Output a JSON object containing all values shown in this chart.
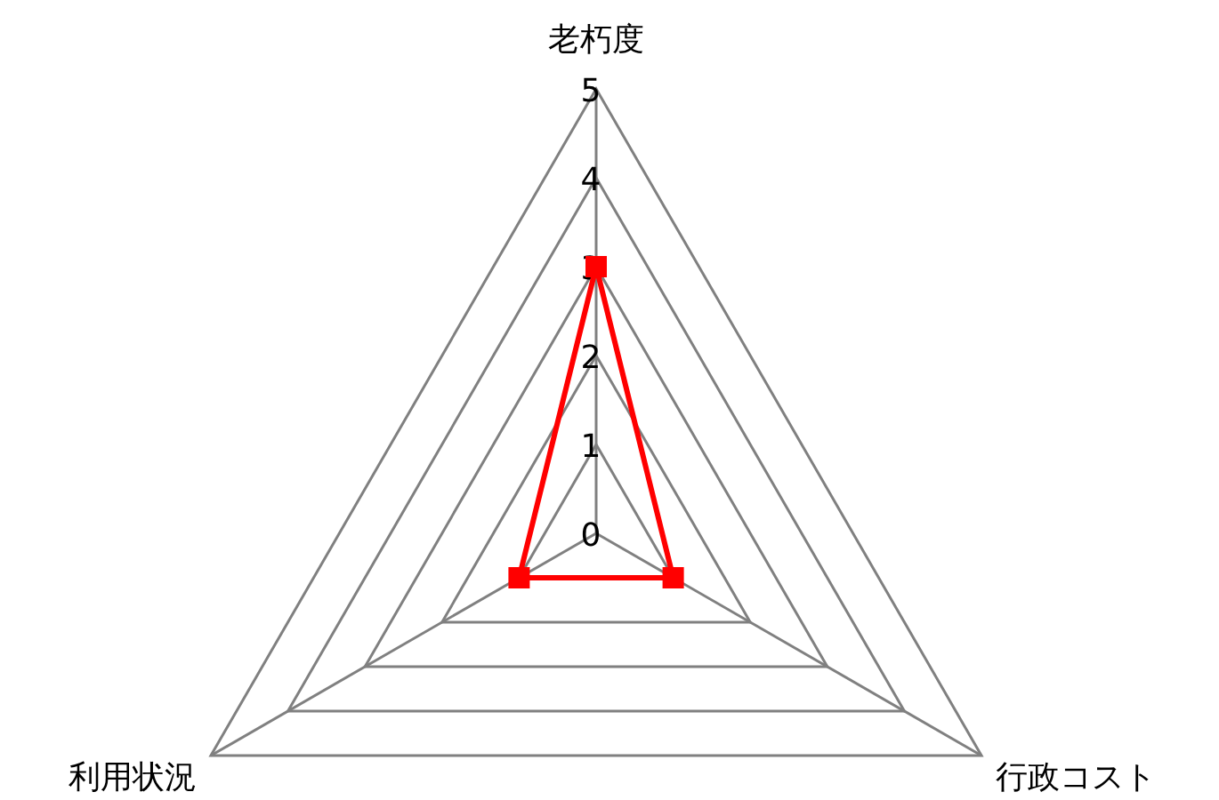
{
  "chart_data": {
    "type": "radar",
    "categories": [
      "老朽度",
      "行政コスト",
      "利用状況"
    ],
    "series": [
      {
        "color": "#ff0000",
        "values": [
          3,
          1,
          1
        ]
      }
    ],
    "ylim": [
      0,
      5
    ],
    "yticks": [
      0,
      1,
      2,
      3,
      4,
      5
    ],
    "grid": true,
    "marker": "square",
    "line_style": "solid"
  }
}
